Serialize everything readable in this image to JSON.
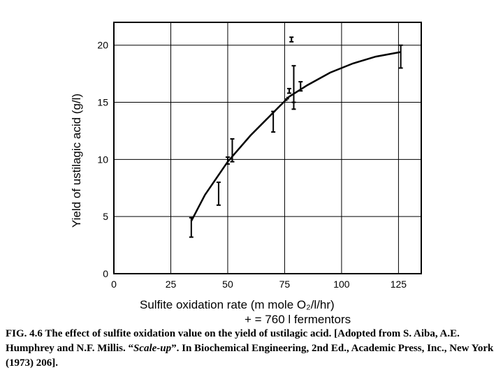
{
  "chart_data": {
    "type": "scatter",
    "title": "",
    "xlabel": "Sulfite oxidation rate (m mole O₂/l/hr)",
    "xlabel_note": "+ = 760  l  fermentors",
    "ylabel": "Yield of ustilagic acid (g/l)",
    "xlim": [
      0,
      135
    ],
    "ylim": [
      0,
      22
    ],
    "x_ticks": [
      "0",
      "25",
      "50",
      "75",
      "100",
      "125"
    ],
    "y_ticks": [
      "0",
      "5",
      "10",
      "15",
      "20"
    ],
    "grid": true,
    "error_bars": [
      {
        "x": 34,
        "low": 3.2,
        "high": 4.9
      },
      {
        "x": 46,
        "low": 6.0,
        "high": 8.0
      },
      {
        "x": 50,
        "low": 9.6,
        "high": 10.2
      },
      {
        "x": 52,
        "low": 9.8,
        "high": 11.8
      },
      {
        "x": 70,
        "low": 12.4,
        "high": 14.2
      },
      {
        "x": 77,
        "low": 15.8,
        "high": 16.2
      },
      {
        "x": 78,
        "low": 20.3,
        "high": 20.7
      },
      {
        "x": 79,
        "low": 14.4,
        "high": 15.0
      },
      {
        "x": 79,
        "low": 15.0,
        "high": 18.2
      },
      {
        "x": 82,
        "low": 16.0,
        "high": 16.8
      },
      {
        "x": 126,
        "low": 18.0,
        "high": 20.0
      }
    ],
    "markers_760l": [
      {
        "x": 76,
        "y": 15.3
      }
    ],
    "fit_curve": {
      "x": [
        34,
        40,
        50,
        60,
        70,
        77,
        85,
        95,
        105,
        115,
        126
      ],
      "y": [
        4.6,
        6.9,
        9.8,
        12.1,
        14.1,
        15.5,
        16.5,
        17.6,
        18.4,
        19.0,
        19.4
      ]
    }
  },
  "caption": {
    "main": "FIG. 4.6 The effect of sulfite oxidation value on the yield of ustilagic acid. [Adopted from S. Aiba, A.E. Humphrey and N.F. Millis. “",
    "italic": "Scale-up",
    "rest": "”. In Biochemical Engineering, 2nd Ed., Academic Press, Inc., New York (1973) 206]."
  }
}
